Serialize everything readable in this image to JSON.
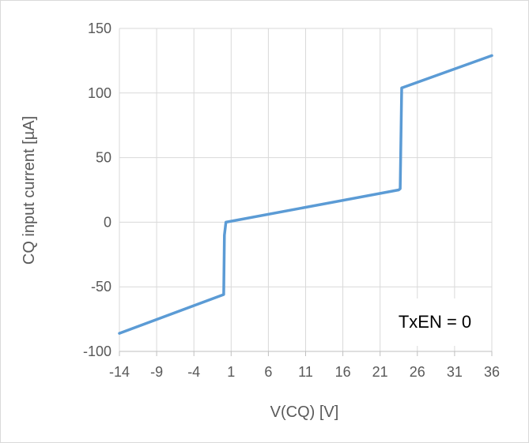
{
  "chart_data": {
    "type": "line",
    "title": "",
    "xlabel": "V(CQ) [V]",
    "ylabel": "CQ input current [µA]",
    "xlim": [
      -14,
      36
    ],
    "ylim": [
      -100,
      150
    ],
    "x_ticks": [
      -14,
      -9,
      -4,
      1,
      6,
      11,
      16,
      21,
      26,
      31,
      36
    ],
    "y_ticks": [
      -100,
      -50,
      0,
      50,
      100,
      150
    ],
    "grid": true,
    "legend": "none",
    "annotation": "TxEN = 0",
    "series": [
      {
        "x": [
          -14,
          0.0,
          0.1,
          0.3,
          23.5,
          23.7,
          23.9,
          36
        ],
        "y": [
          -86,
          -56,
          -10,
          0,
          25,
          26,
          104,
          129
        ]
      }
    ],
    "colors": {
      "line": "#5b9bd5",
      "grid": "#d9d9d9",
      "text": "#595959"
    }
  }
}
